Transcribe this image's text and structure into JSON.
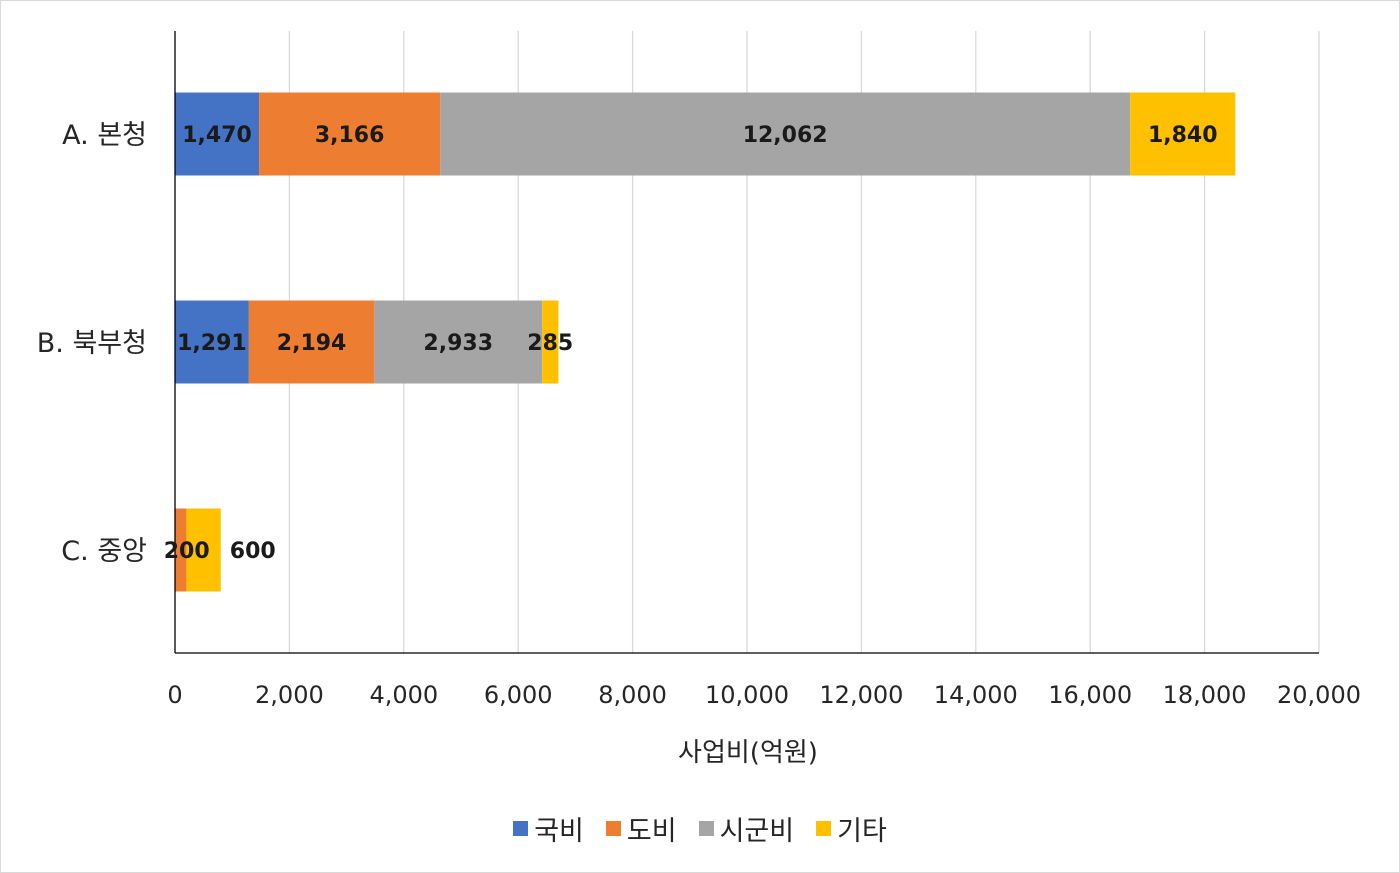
{
  "chart_data": {
    "type": "bar",
    "orientation": "horizontal",
    "stacked": true,
    "categories": [
      "A. 본청",
      "B. 북부청",
      "C. 중앙"
    ],
    "series": [
      {
        "name": "국비",
        "color": "#4472c4",
        "values": [
          1470,
          1291,
          0
        ],
        "labels": [
          "1,470",
          "1,291",
          ""
        ]
      },
      {
        "name": "도비",
        "color": "#ed7d31",
        "values": [
          3166,
          2194,
          200
        ],
        "labels": [
          "3,166",
          "2,194",
          "200"
        ]
      },
      {
        "name": "시군비",
        "color": "#a5a5a5",
        "values": [
          12062,
          2933,
          0
        ],
        "labels": [
          "12,062",
          "2,933",
          ""
        ]
      },
      {
        "name": "기타",
        "color": "#ffc000",
        "values": [
          1840,
          285,
          600
        ],
        "labels": [
          "1,840",
          "285",
          "600"
        ]
      }
    ],
    "xlabel": "사업비(억원)",
    "xlim": [
      0,
      20000
    ],
    "xticks": [
      0,
      2000,
      4000,
      6000,
      8000,
      10000,
      12000,
      14000,
      16000,
      18000,
      20000
    ],
    "xtick_labels": [
      "0",
      "2,000",
      "4,000",
      "6,000",
      "8,000",
      "10,000",
      "12,000",
      "14,000",
      "16,000",
      "18,000",
      "20,000"
    ],
    "grid": true,
    "legend_position": "bottom"
  }
}
